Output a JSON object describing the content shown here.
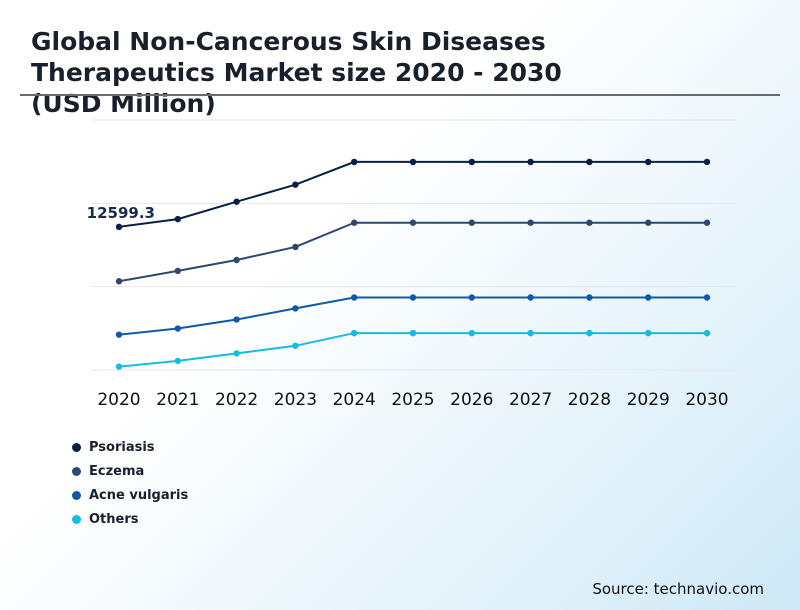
{
  "title": {
    "line1": "Global Non-Cancerous Skin Diseases",
    "line2": "Therapeutics Market size 2020 - 2030",
    "line3": "(USD Million)"
  },
  "source": "Source: technavio.com",
  "colors": {
    "psoriasis": "#0b1f45",
    "eczema": "#2e4770",
    "acne": "#0e5aa7",
    "others": "#14bde0",
    "grid": "#e2e6ea"
  },
  "chart_data": {
    "type": "line",
    "categories": [
      "2020",
      "2021",
      "2022",
      "2023",
      "2024",
      "2025",
      "2026",
      "2027",
      "2028",
      "2029",
      "2030"
    ],
    "ylim": [
      0,
      22000
    ],
    "grid": true,
    "legend_position": "bottom-left",
    "annotations": [
      {
        "series": "Psoriasis",
        "category": "2020",
        "text": "12599.3"
      }
    ],
    "series": [
      {
        "name": "Psoriasis",
        "color": "#0b1f45",
        "values": [
          12599.3,
          13280,
          14810,
          16310,
          18310,
          18310,
          18310,
          18310,
          18310,
          18310,
          18310
        ]
      },
      {
        "name": "Eczema",
        "color": "#2e4770",
        "values": [
          7810,
          8720,
          9680,
          10830,
          12960,
          12960,
          12960,
          12960,
          12960,
          12960,
          12960
        ]
      },
      {
        "name": "Acne vulgaris",
        "color": "#0e5aa7",
        "values": [
          3110,
          3650,
          4440,
          5420,
          6380,
          6380,
          6380,
          6380,
          6380,
          6380,
          6380
        ]
      },
      {
        "name": "Others",
        "color": "#14bde0",
        "values": [
          300,
          800,
          1460,
          2130,
          3250,
          3250,
          3250,
          3250,
          3250,
          3250,
          3250
        ]
      }
    ]
  }
}
